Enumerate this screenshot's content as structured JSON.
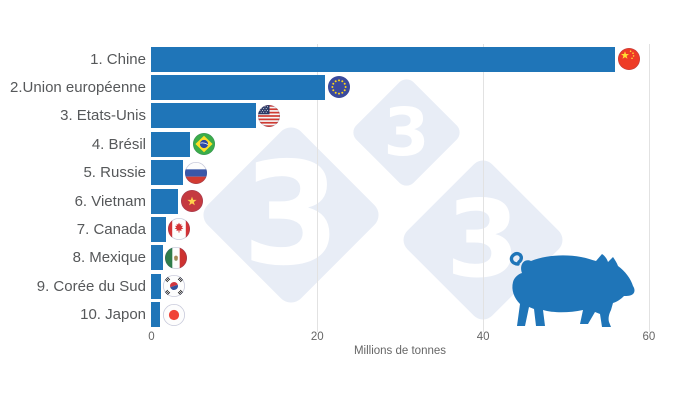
{
  "chart_data": {
    "type": "bar",
    "orientation": "horizontal",
    "title": "",
    "categories": [
      "1. Chine",
      "2.Union européenne",
      "3. Etats-Unis",
      "4. Brésil",
      "5. Russie",
      "6. Vietnam",
      "7. Canada",
      "8. Mexique",
      "9. Corée du Sud",
      "10. Japon"
    ],
    "values": [
      56,
      21,
      12.6,
      4.7,
      3.8,
      3.3,
      1.8,
      1.4,
      1.2,
      1.1
    ],
    "flags": [
      "china",
      "european-union",
      "united-states",
      "brazil",
      "russia",
      "vietnam",
      "canada",
      "mexico",
      "south-korea",
      "japan"
    ],
    "xlabel": "Millions de tonnes",
    "ylabel": "",
    "x_ticks": [
      "0",
      "20",
      "40",
      "60"
    ],
    "xlim": [
      0,
      64.4
    ],
    "legend": "none",
    "grid": "vertical gridlines at 20, 40, 60",
    "bar_color": "#1f75b8"
  },
  "watermark": {
    "glyph": "3",
    "description": "three rotated-square tiles each containing the digit 3 (333 logo)",
    "color": "#e8edf6",
    "glyph_color": "#ffffff"
  },
  "decor": {
    "pig_silhouette_color": "#1f75b8"
  },
  "colors": {
    "label_text": "#56585a",
    "tick_text": "#666666",
    "gridline": "#e2e2e2",
    "background": "#ffffff"
  }
}
